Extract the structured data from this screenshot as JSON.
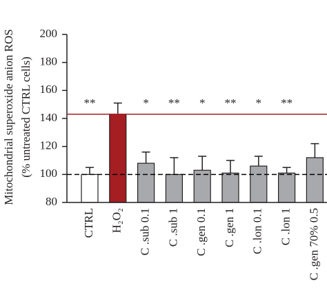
{
  "chart_data": {
    "type": "bar",
    "y_label": [
      "Mitochondrial superoxide anion ROS",
      "(% untreated CTRL cells)"
    ],
    "categories": [
      "CTRL",
      "H₂O₂",
      "C .sub 0.1",
      "C .sub 1",
      "C .gen 0.1",
      "C .gen 1",
      "C .lon 0.1",
      "C .lon 1",
      "C .gen 70% 0.5"
    ],
    "values": [
      100,
      143,
      108,
      100,
      103,
      101,
      106,
      101,
      112
    ],
    "errors": [
      5,
      8,
      8,
      12,
      10,
      9,
      7,
      4,
      10
    ],
    "colors": [
      "#ffffff",
      "#a51e22",
      "#a7a9ac",
      "#a7a9ac",
      "#a7a9ac",
      "#a7a9ac",
      "#a7a9ac",
      "#a7a9ac",
      "#a7a9ac"
    ],
    "significance": [
      "**",
      null,
      "*",
      "**",
      "*",
      "**",
      "*",
      "**",
      null
    ],
    "reference_lines": [
      {
        "value": 143,
        "color": "#a51e22",
        "dashed": false
      },
      {
        "value": 100,
        "color": "#000000",
        "dashed": true
      }
    ],
    "ylim": [
      80,
      200
    ],
    "yticks": [
      80,
      100,
      120,
      140,
      160,
      180,
      200
    ]
  }
}
